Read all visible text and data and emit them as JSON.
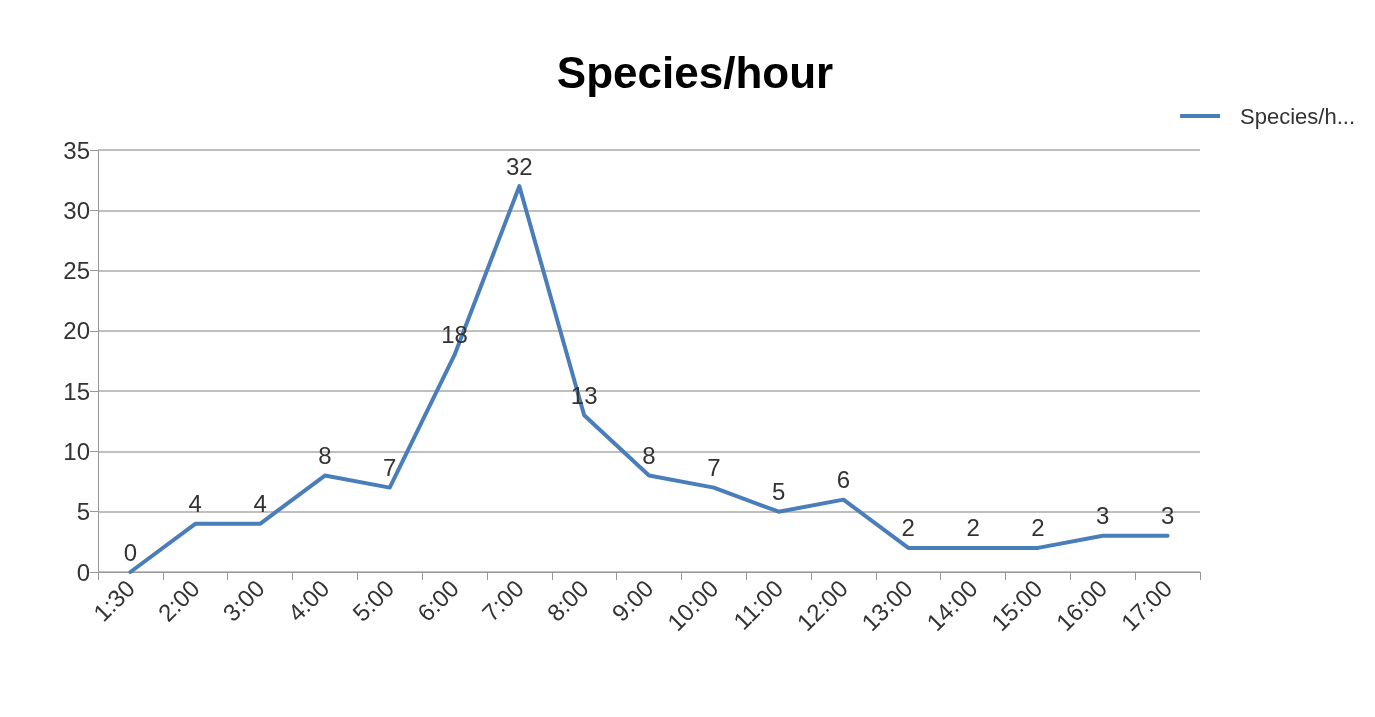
{
  "chart_data": {
    "type": "line",
    "title": "Species/hour",
    "categories": [
      "1:30",
      "2:00",
      "3:00",
      "4:00",
      "5:00",
      "6:00",
      "7:00",
      "8:00",
      "9:00",
      "10:00",
      "11:00",
      "12:00",
      "13:00",
      "14:00",
      "15:00",
      "16:00",
      "17:00"
    ],
    "series": [
      {
        "name": "Species/h...",
        "color": "#4a7ebb",
        "values": [
          0,
          4,
          4,
          8,
          7,
          18,
          32,
          13,
          8,
          7,
          5,
          6,
          2,
          2,
          2,
          3,
          3
        ]
      }
    ],
    "ylim": [
      0,
      35
    ],
    "yticks": [
      0,
      5,
      10,
      15,
      20,
      25,
      30,
      35
    ],
    "grid": "y",
    "legend": "top right",
    "marker": "none",
    "line_style": "solid",
    "data_labels": true
  }
}
